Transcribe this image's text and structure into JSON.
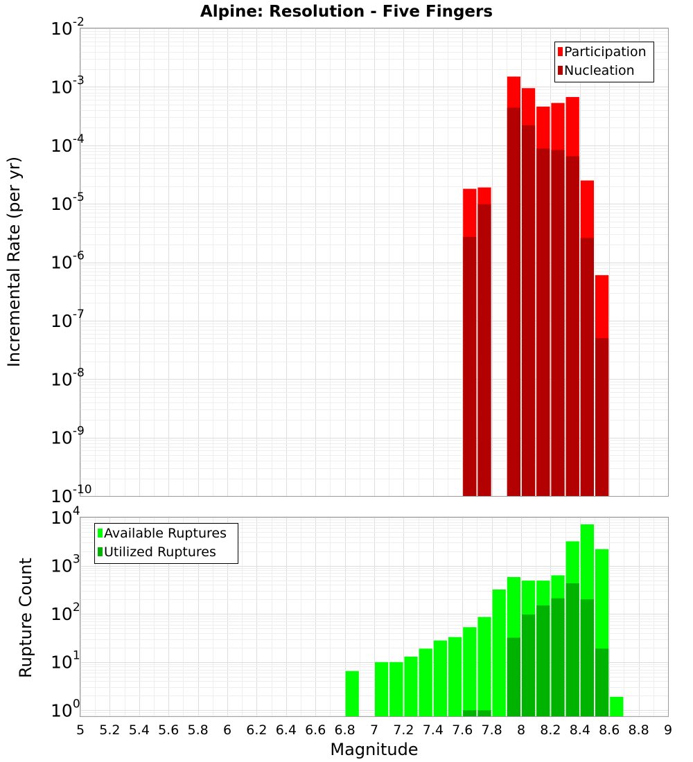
{
  "chart_data": [
    {
      "type": "bar",
      "title": "Alpine: Resolution - Five Fingers",
      "xlabel": "Magnitude",
      "ylabel": "Incremental Rate (per yr)",
      "yscale": "log",
      "ylim": [
        1e-10,
        0.01
      ],
      "xlim": [
        5,
        9
      ],
      "bin_width": 0.1,
      "grid": true,
      "legend_position": "top-right",
      "series": [
        {
          "name": "Participation",
          "color": "#ff0000",
          "points": [
            {
              "x": 7.65,
              "y": 1.8e-05
            },
            {
              "x": 7.75,
              "y": 1.9e-05
            },
            {
              "x": 7.95,
              "y": 0.0015
            },
            {
              "x": 8.05,
              "y": 0.00095
            },
            {
              "x": 8.15,
              "y": 0.00046
            },
            {
              "x": 8.25,
              "y": 0.00053
            },
            {
              "x": 8.35,
              "y": 0.00067
            },
            {
              "x": 8.45,
              "y": 2.5e-05
            },
            {
              "x": 8.55,
              "y": 6e-07
            }
          ]
        },
        {
          "name": "Nucleation",
          "color": "#b30000",
          "points": [
            {
              "x": 7.65,
              "y": 2.7e-06
            },
            {
              "x": 7.75,
              "y": 9.8e-06
            },
            {
              "x": 7.95,
              "y": 0.00044
            },
            {
              "x": 8.05,
              "y": 0.00022
            },
            {
              "x": 8.15,
              "y": 8.8e-05
            },
            {
              "x": 8.25,
              "y": 8.3e-05
            },
            {
              "x": 8.35,
              "y": 6.5e-05
            },
            {
              "x": 8.45,
              "y": 2.6e-06
            },
            {
              "x": 8.55,
              "y": 5e-08
            }
          ]
        }
      ],
      "x_ticks": [
        "5",
        "5.2",
        "5.4",
        "5.6",
        "5.8",
        "6",
        "6.2",
        "6.4",
        "6.6",
        "6.8",
        "7",
        "7.2",
        "7.4",
        "7.6",
        "7.8",
        "8",
        "8.2",
        "8.4",
        "8.6",
        "8.8",
        "9"
      ],
      "y_ticks": [
        {
          "base": "10",
          "exp": "-2"
        },
        {
          "base": "10",
          "exp": "-3"
        },
        {
          "base": "10",
          "exp": "-4"
        },
        {
          "base": "10",
          "exp": "-5"
        },
        {
          "base": "10",
          "exp": "-6"
        },
        {
          "base": "10",
          "exp": "-7"
        },
        {
          "base": "10",
          "exp": "-8"
        },
        {
          "base": "10",
          "exp": "-9"
        },
        {
          "base": "10",
          "exp": "-10"
        }
      ]
    },
    {
      "type": "bar",
      "xlabel": "Magnitude",
      "ylabel": "Rupture Count",
      "yscale": "log",
      "ylim": [
        0.75,
        10000
      ],
      "xlim": [
        5,
        9
      ],
      "bin_width": 0.1,
      "grid": true,
      "legend_position": "top-left",
      "series": [
        {
          "name": "Available Ruptures",
          "color": "#00ff00",
          "points": [
            {
              "x": 6.85,
              "y": 6.5
            },
            {
              "x": 7.05,
              "y": 10
            },
            {
              "x": 7.15,
              "y": 10
            },
            {
              "x": 7.25,
              "y": 13
            },
            {
              "x": 7.35,
              "y": 19
            },
            {
              "x": 7.45,
              "y": 28
            },
            {
              "x": 7.55,
              "y": 33
            },
            {
              "x": 7.65,
              "y": 53
            },
            {
              "x": 7.75,
              "y": 86
            },
            {
              "x": 7.85,
              "y": 320
            },
            {
              "x": 7.95,
              "y": 580
            },
            {
              "x": 8.05,
              "y": 490
            },
            {
              "x": 8.15,
              "y": 490
            },
            {
              "x": 8.25,
              "y": 630
            },
            {
              "x": 8.35,
              "y": 3200
            },
            {
              "x": 8.45,
              "y": 7200
            },
            {
              "x": 8.55,
              "y": 2200
            },
            {
              "x": 8.65,
              "y": 1.9
            }
          ]
        },
        {
          "name": "Utilized Ruptures",
          "color": "#00b300",
          "points": [
            {
              "x": 7.65,
              "y": 1
            },
            {
              "x": 7.75,
              "y": 1
            },
            {
              "x": 7.95,
              "y": 32
            },
            {
              "x": 8.05,
              "y": 97
            },
            {
              "x": 8.15,
              "y": 150
            },
            {
              "x": 8.25,
              "y": 210
            },
            {
              "x": 8.35,
              "y": 430
            },
            {
              "x": 8.45,
              "y": 200
            },
            {
              "x": 8.55,
              "y": 19
            }
          ]
        }
      ],
      "x_ticks": [
        "5",
        "5.2",
        "5.4",
        "5.6",
        "5.8",
        "6",
        "6.2",
        "6.4",
        "6.6",
        "6.8",
        "7",
        "7.2",
        "7.4",
        "7.6",
        "7.8",
        "8",
        "8.2",
        "8.4",
        "8.6",
        "8.8",
        "9"
      ],
      "y_ticks": [
        {
          "base": "10",
          "exp": "4"
        },
        {
          "base": "10",
          "exp": "3"
        },
        {
          "base": "10",
          "exp": "2"
        },
        {
          "base": "10",
          "exp": "1"
        },
        {
          "base": "10",
          "exp": "0"
        }
      ]
    }
  ]
}
